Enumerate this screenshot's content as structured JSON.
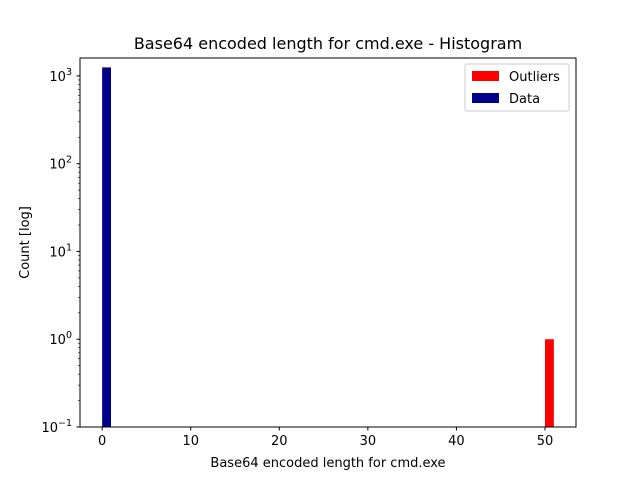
{
  "chart_data": {
    "type": "bar",
    "title": "Base64 encoded length for cmd.exe - Histogram",
    "xlabel": "Base64 encoded length for cmd.exe",
    "ylabel": "Count [log]",
    "xlim": [
      -2.5,
      53.5
    ],
    "ylim": [
      0.1,
      1600
    ],
    "yscale": "log",
    "xticks": [
      0,
      10,
      20,
      30,
      40,
      50
    ],
    "yticks": [
      {
        "value": 0.1,
        "base": "10",
        "exp": "−1"
      },
      {
        "value": 1,
        "base": "10",
        "exp": "0"
      },
      {
        "value": 10,
        "base": "10",
        "exp": "1"
      },
      {
        "value": 100,
        "base": "10",
        "exp": "2"
      },
      {
        "value": 1000,
        "base": "10",
        "exp": "3"
      }
    ],
    "grid": false,
    "legend_position": "top-right",
    "series": [
      {
        "name": "Outliers",
        "color": "#ff0000",
        "bins": [
          {
            "x0": 50,
            "x1": 51,
            "count": 1
          }
        ]
      },
      {
        "name": "Data",
        "color": "#00008b",
        "bins": [
          {
            "x0": 0,
            "x1": 1,
            "count": 1250
          }
        ]
      }
    ]
  }
}
